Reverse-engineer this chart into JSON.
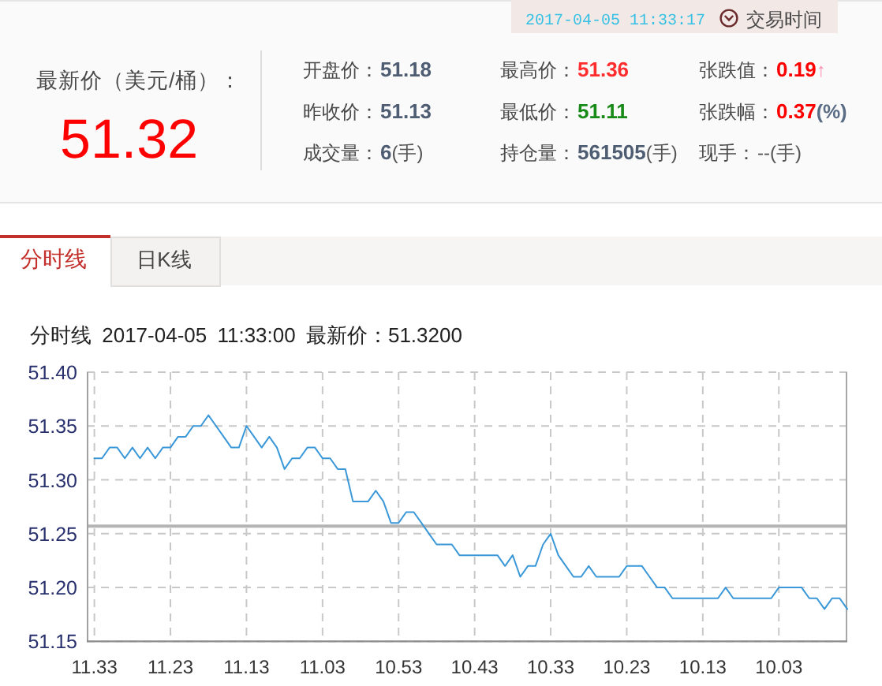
{
  "chart_data": [
    {
      "type": "other",
      "annotations": [
        "2017-04-05 11:33:17",
        "交易时间",
        "最新价（美元/桶）：",
        "51.32",
        "开盘价：",
        "51.18",
        "最高价：",
        "51.36",
        "张跌值：",
        "0.19",
        "↑",
        "昨收价：",
        "51.13",
        "最低价：",
        "51.11",
        "张跌幅：",
        "0.37",
        "(%)",
        "成交量：",
        "6",
        "(手)",
        "持仓量：",
        "561505",
        "(手)",
        "现手：",
        "--(手)"
      ]
    },
    {
      "type": "line",
      "title": "分时线 2017-04-05 11:33:00 最新价：51.3200",
      "annotations": [
        "分时线",
        "日K线"
      ],
      "x": [
        "2017-04-05T11:33",
        "2017-04-05T11:32",
        "2017-04-05T11:31",
        "2017-04-05T11:30",
        "2017-04-05T11:29",
        "2017-04-05T11:28",
        "2017-04-05T11:27",
        "2017-04-05T11:26",
        "2017-04-05T11:25",
        "2017-04-05T11:24",
        "2017-04-05T11:23",
        "2017-04-05T11:22",
        "2017-04-05T11:21",
        "2017-04-05T11:20",
        "2017-04-05T11:19",
        "2017-04-05T11:18",
        "2017-04-05T11:17",
        "2017-04-05T11:16",
        "2017-04-05T11:15",
        "2017-04-05T11:14",
        "2017-04-05T11:13",
        "2017-04-05T11:12",
        "2017-04-05T11:11",
        "2017-04-05T11:10",
        "2017-04-05T11:09",
        "2017-04-05T11:08",
        "2017-04-05T11:07",
        "2017-04-05T11:06",
        "2017-04-05T11:05",
        "2017-04-05T11:04",
        "2017-04-05T11:03",
        "2017-04-05T11:02",
        "2017-04-05T11:01",
        "2017-04-05T11:00",
        "2017-04-05T10:59",
        "2017-04-05T10:58",
        "2017-04-05T10:57",
        "2017-04-05T10:56",
        "2017-04-05T10:55",
        "2017-04-05T10:54",
        "2017-04-05T10:53",
        "2017-04-05T10:52",
        "2017-04-05T10:51",
        "2017-04-05T10:50",
        "2017-04-05T10:49",
        "2017-04-05T10:48",
        "2017-04-05T10:47",
        "2017-04-05T10:46",
        "2017-04-05T10:45",
        "2017-04-05T10:44",
        "2017-04-05T10:43",
        "2017-04-05T10:42",
        "2017-04-05T10:41",
        "2017-04-05T10:40",
        "2017-04-05T10:39",
        "2017-04-05T10:38",
        "2017-04-05T10:37",
        "2017-04-05T10:36",
        "2017-04-05T10:35",
        "2017-04-05T10:34",
        "2017-04-05T10:33",
        "2017-04-05T10:32",
        "2017-04-05T10:31",
        "2017-04-05T10:30",
        "2017-04-05T10:29",
        "2017-04-05T10:28",
        "2017-04-05T10:27",
        "2017-04-05T10:26",
        "2017-04-05T10:25",
        "2017-04-05T10:24",
        "2017-04-05T10:23",
        "2017-04-05T10:22",
        "2017-04-05T10:21",
        "2017-04-05T10:20",
        "2017-04-05T10:19",
        "2017-04-05T10:18",
        "2017-04-05T10:17",
        "2017-04-05T10:16",
        "2017-04-05T10:15",
        "2017-04-05T10:14",
        "2017-04-05T10:13",
        "2017-04-05T10:12",
        "2017-04-05T10:11",
        "2017-04-05T10:10",
        "2017-04-05T10:09",
        "2017-04-05T10:08",
        "2017-04-05T10:07",
        "2017-04-05T10:06",
        "2017-04-05T10:05",
        "2017-04-05T10:04",
        "2017-04-05T10:03",
        "2017-04-05T10:02",
        "2017-04-05T10:01",
        "2017-04-05T10:00",
        "2017-04-05T09:59",
        "2017-04-05T09:58",
        "2017-04-05T09:57",
        "2017-04-05T09:56",
        "2017-04-05T09:55",
        "2017-04-05T09:54"
      ],
      "values": [
        51.32,
        51.32,
        51.33,
        51.33,
        51.32,
        51.33,
        51.32,
        51.33,
        51.32,
        51.33,
        51.33,
        51.34,
        51.34,
        51.35,
        51.35,
        51.36,
        51.35,
        51.34,
        51.33,
        51.33,
        51.35,
        51.34,
        51.33,
        51.34,
        51.33,
        51.31,
        51.32,
        51.32,
        51.33,
        51.33,
        51.32,
        51.32,
        51.31,
        51.31,
        51.28,
        51.28,
        51.28,
        51.29,
        51.28,
        51.26,
        51.26,
        51.27,
        51.27,
        51.26,
        51.25,
        51.24,
        51.24,
        51.24,
        51.23,
        51.23,
        51.23,
        51.23,
        51.23,
        51.23,
        51.22,
        51.23,
        51.21,
        51.22,
        51.22,
        51.24,
        51.25,
        51.23,
        51.22,
        51.21,
        51.21,
        51.22,
        51.21,
        51.21,
        51.21,
        51.21,
        51.22,
        51.22,
        51.22,
        51.21,
        51.2,
        51.2,
        51.19,
        51.19,
        51.19,
        51.19,
        51.19,
        51.19,
        51.19,
        51.2,
        51.19,
        51.19,
        51.19,
        51.19,
        51.19,
        51.19,
        51.2,
        51.2,
        51.2,
        51.2,
        51.19,
        51.19,
        51.18,
        51.19,
        51.19,
        51.18
      ],
      "color": "#3a98d8",
      "xlim": [
        "2017-04-05T11:34",
        "2017-04-05T09:54"
      ],
      "xticks": [
        {
          "value": "2017-04-05T11:33",
          "label": "11.33"
        },
        {
          "value": "2017-04-05T11:23",
          "label": "11.23"
        },
        {
          "value": "2017-04-05T11:13",
          "label": "11.13"
        },
        {
          "value": "2017-04-05T11:03",
          "label": "11.03"
        },
        {
          "value": "2017-04-05T10:53",
          "label": "10.53"
        },
        {
          "value": "2017-04-05T10:43",
          "label": "10.43"
        },
        {
          "value": "2017-04-05T10:33",
          "label": "10.33"
        },
        {
          "value": "2017-04-05T10:23",
          "label": "10.23"
        },
        {
          "value": "2017-04-05T10:13",
          "label": "10.13"
        },
        {
          "value": "2017-04-05T10:03",
          "label": "10.03"
        }
      ],
      "ylim": [
        51.15,
        51.4
      ],
      "yticks": [
        51.15,
        {
          "value": 51.2,
          "label": "51.20"
        },
        51.25,
        {
          "value": 51.3,
          "label": "51.30"
        },
        51.35,
        {
          "value": 51.4,
          "label": "51.40"
        }
      ],
      "grid": true,
      "ref_lines": [
        {
          "axis": "y",
          "value": 51.257,
          "color": "#b4b4b4"
        }
      ]
    }
  ]
}
